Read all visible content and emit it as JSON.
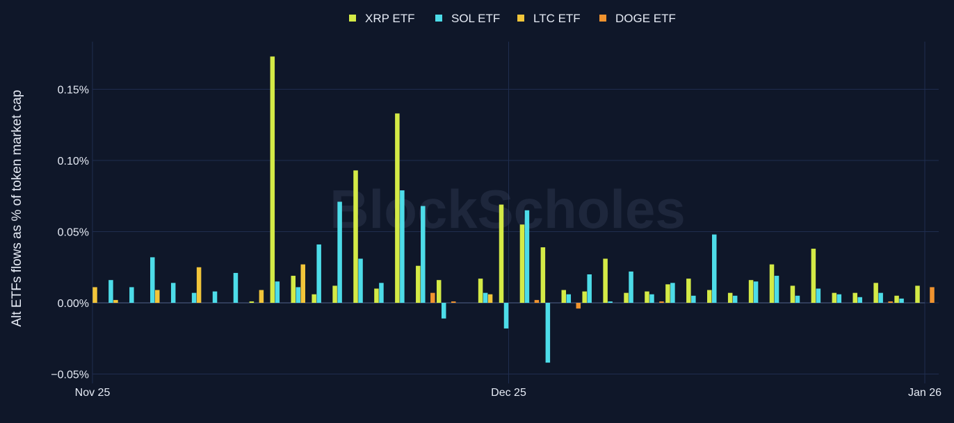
{
  "chart_data": {
    "type": "bar",
    "ylabel": "Alt ETFs flows as % of token market cap",
    "xlabel": "",
    "ylim": [
      -0.05,
      0.18
    ],
    "yticks": [
      {
        "value": -0.05,
        "label": "−0.05%"
      },
      {
        "value": 0.0,
        "label": "0.00%"
      },
      {
        "value": 0.05,
        "label": "0.05%"
      },
      {
        "value": 0.1,
        "label": "0.10%"
      },
      {
        "value": 0.15,
        "label": "0.15%"
      }
    ],
    "xticks": [
      {
        "index": 0,
        "label": "Nov 25"
      },
      {
        "index": 20,
        "label": "Dec 25"
      },
      {
        "index": 40,
        "label": "Jan 26"
      }
    ],
    "grid": true,
    "legend_position": "top-center",
    "watermark": "BlockScholes",
    "series": [
      {
        "name": "XRP ETF",
        "color": "#d4ea46",
        "values": [
          0,
          0,
          0,
          0,
          0,
          0,
          0,
          0,
          0.001,
          0.173,
          0.019,
          0.006,
          0.012,
          0.093,
          0.01,
          0.133,
          0.026,
          0.016,
          0,
          0.017,
          0.069,
          0.055,
          0.039,
          0.009,
          0.008,
          0.031,
          0.007,
          0.008,
          0.013,
          0.017,
          0.009,
          0.007,
          0.016,
          0.027,
          0.012,
          0.038,
          0.007,
          0.007,
          0.014,
          0.005,
          0.012
        ]
      },
      {
        "name": "SOL ETF",
        "color": "#4ddce8",
        "values": [
          0,
          0.016,
          0.011,
          0.032,
          0.014,
          0.007,
          0.008,
          0.021,
          0,
          0.015,
          0.011,
          0.041,
          0.071,
          0.031,
          0.014,
          0.079,
          0.068,
          -0.011,
          0,
          0.007,
          -0.018,
          0.065,
          -0.042,
          0.006,
          0.02,
          0.001,
          0.022,
          0.006,
          0.014,
          0.005,
          0.048,
          0.005,
          0.015,
          0.019,
          0.005,
          0.01,
          0.006,
          0.004,
          0.007,
          0.003,
          0
        ]
      },
      {
        "name": "LTC ETF",
        "color": "#f2c53a",
        "values": [
          0.011,
          0.002,
          0,
          0.009,
          0,
          0.025,
          0,
          0,
          0.009,
          0,
          0.027,
          0,
          0,
          0,
          0,
          0,
          0,
          0,
          0,
          0.006,
          0,
          0,
          0,
          0,
          0,
          0,
          0,
          0,
          0,
          0,
          0,
          0,
          0,
          0,
          0,
          0,
          0,
          0,
          0,
          0,
          0
        ]
      },
      {
        "name": "DOGE ETF",
        "color": "#f0932f",
        "values": [
          0,
          0,
          0,
          0,
          0,
          0,
          0,
          0,
          0,
          0,
          0,
          0,
          0,
          0,
          0,
          0,
          0.007,
          0.001,
          0,
          0,
          0,
          0.002,
          0,
          -0.004,
          0,
          0,
          0,
          0.001,
          0,
          0,
          0,
          0,
          0,
          0,
          0,
          0,
          0,
          0,
          0.001,
          0,
          0.011
        ]
      }
    ]
  }
}
